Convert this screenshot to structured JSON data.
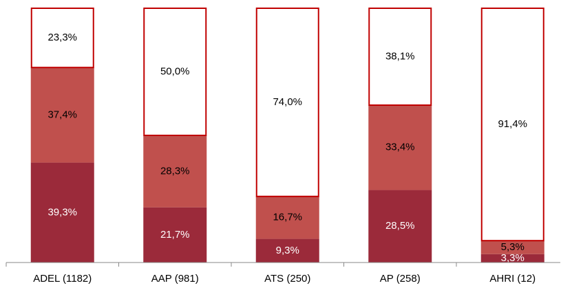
{
  "chart_data": {
    "type": "stacked_bar",
    "categories": [
      "ADEL (1182)",
      "AAP (981)",
      "ATS (250)",
      "AP (258)",
      "AHRI (12)"
    ],
    "series": [
      {
        "color": "#9b2a3a",
        "label_color": "#ffffff",
        "values": [
          39.3,
          21.7,
          9.3,
          28.5,
          3.3
        ],
        "value_labels": [
          "39,3%",
          "21,7%",
          "9,3%",
          "28,5%",
          "3,3%"
        ]
      },
      {
        "color": "#c0504d",
        "label_color": "#000000",
        "values": [
          37.4,
          28.3,
          16.7,
          33.4,
          5.3
        ],
        "value_labels": [
          "37,4%",
          "28,3%",
          "16,7%",
          "33,4%",
          "5,3%"
        ]
      },
      {
        "color": "#ffffff",
        "stroke": "#c00000",
        "label_color": "#000000",
        "values": [
          23.3,
          50.0,
          74.0,
          38.1,
          91.4
        ],
        "value_labels": [
          "23,3%",
          "50,0%",
          "74,0%",
          "38,1%",
          "91,4%"
        ]
      }
    ],
    "ylim": [
      0,
      100
    ]
  }
}
